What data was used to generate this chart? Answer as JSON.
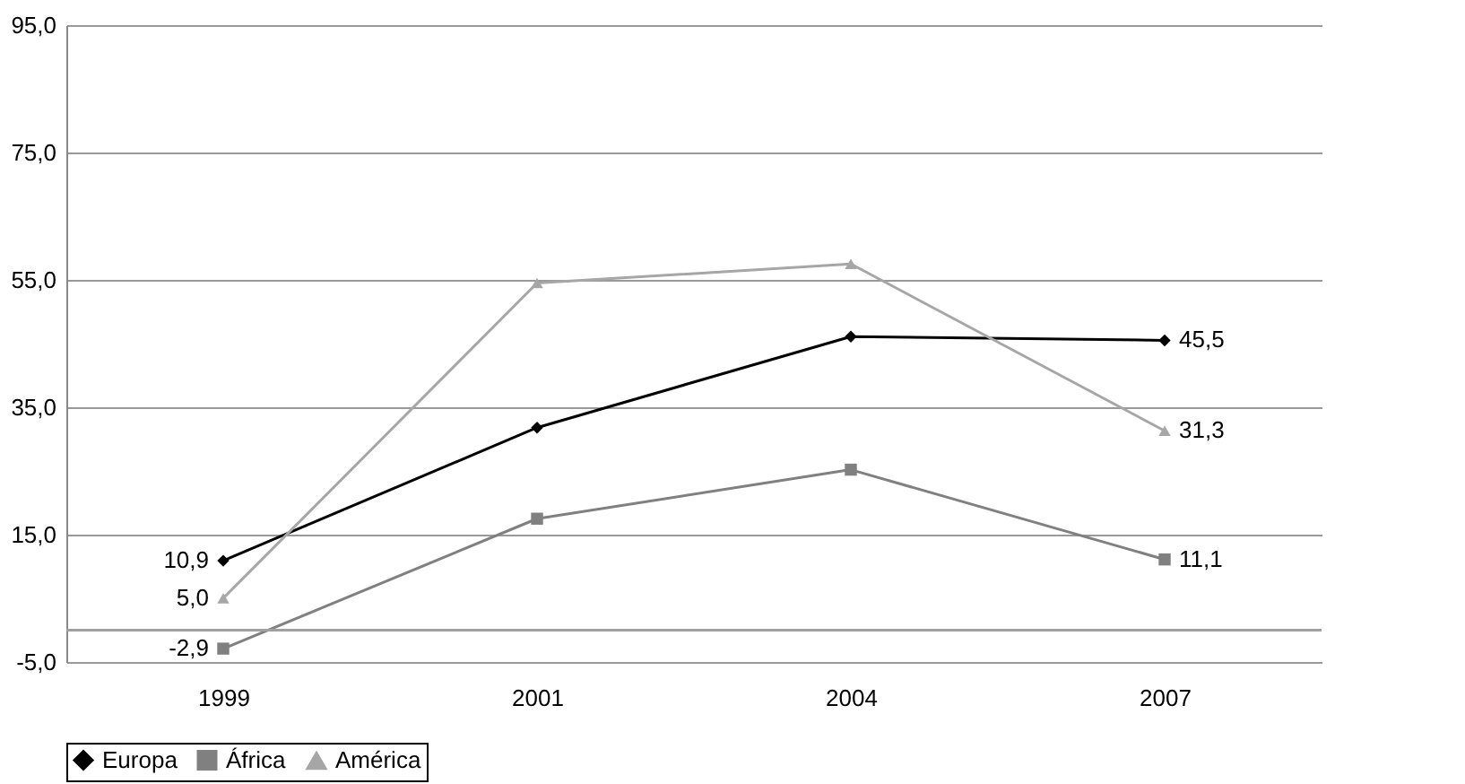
{
  "chart_data": {
    "type": "line",
    "categories": [
      "1999",
      "2001",
      "2004",
      "2007"
    ],
    "series": [
      {
        "name": "Europa",
        "color": "#000000",
        "marker": "diamond",
        "values": [
          10.9,
          31.8,
          46.1,
          45.5
        ],
        "value_labels": [
          "10,9",
          null,
          null,
          "45,5"
        ]
      },
      {
        "name": "África",
        "color": "#808080",
        "marker": "square",
        "values": [
          -2.9,
          17.5,
          25.2,
          11.1
        ],
        "value_labels": [
          "-2,9",
          null,
          null,
          "11,1"
        ]
      },
      {
        "name": "América",
        "color": "#a6a6a6",
        "marker": "triangle",
        "values": [
          5.0,
          54.5,
          57.5,
          31.3
        ],
        "value_labels": [
          "5,0",
          null,
          null,
          "31,3"
        ]
      }
    ],
    "ylim": [
      -5,
      95
    ],
    "yticks": [
      {
        "value": -5,
        "label": "-5,0"
      },
      {
        "value": 15,
        "label": "15,0"
      },
      {
        "value": 35,
        "label": "35,0"
      },
      {
        "value": 55,
        "label": "55,0"
      },
      {
        "value": 75,
        "label": "75,0"
      },
      {
        "value": 95,
        "label": "95,0"
      }
    ],
    "ref_lines": [
      {
        "axis": "y",
        "value": 0,
        "label": null,
        "color": "#a0a0a0"
      }
    ],
    "grid": "y",
    "legend": "bottom",
    "line_style": "solid"
  }
}
